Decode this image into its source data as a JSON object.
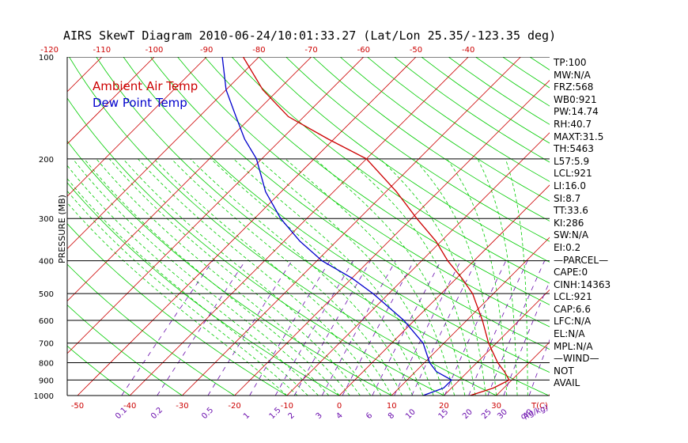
{
  "title": "AIRS SkewT Diagram 2010-06-24/10:01:33.27 (Lat/Lon 25.35/-123.35 deg)",
  "legend": {
    "ambient": "Ambient Air Temp",
    "dewpoint": "Dew Point Temp",
    "ambient_color": "#cc0000",
    "dewpoint_color": "#0000cc"
  },
  "indices": [
    "TP:100",
    "MW:N/A",
    "FRZ:568",
    "WB0:921",
    "PW:14.74",
    "RH:40.7",
    "MAXT:31.5",
    "TH:5463",
    "L57:5.9",
    "LCL:921",
    "LI:16.0",
    "SI:8.7",
    "TT:33.6",
    "KI:286",
    "SW:N/A",
    "EI:0.2",
    "—PARCEL—",
    "CAPE:0",
    "CINH:14363",
    "LCL:921",
    "CAP:6.6",
    "LFC:N/A",
    "EL:N/A",
    "MPL:N/A",
    "—WIND—",
    "NOT",
    "AVAIL"
  ],
  "chart_data": {
    "type": "line",
    "ylabel": "PRESSURE (MB)",
    "ylim": [
      1000,
      100
    ],
    "yscale": "log",
    "y_ticks": [
      "100",
      "200",
      "300",
      "400",
      "500",
      "600",
      "700",
      "800",
      "900",
      "1000"
    ],
    "x_ticks_bottom": [
      "-50",
      "-40",
      "-30",
      "-20",
      "-10",
      "0",
      "10",
      "20",
      "30"
    ],
    "x_ticks_top": [
      "-120",
      "-110",
      "-100",
      "-90",
      "-80",
      "-70",
      "-60",
      "-50",
      "-40"
    ],
    "x_unit_label": "T(C)",
    "mixing_ratio_labels": [
      "0.1",
      "0.2",
      "0.5",
      "1",
      "1.5",
      "2",
      "3",
      "4",
      "6",
      "8",
      "10",
      "15",
      "20",
      "25",
      "30",
      "40"
    ],
    "mixing_ratio_unit": "q(g/kg)",
    "series": [
      {
        "name": "Ambient Air Temp",
        "color": "#cc0000",
        "points": [
          [
            1000,
            25
          ],
          [
            950,
            28
          ],
          [
            900,
            29.5
          ],
          [
            850,
            27
          ],
          [
            800,
            24
          ],
          [
            700,
            18.5
          ],
          [
            600,
            13
          ],
          [
            500,
            6
          ],
          [
            450,
            1
          ],
          [
            400,
            -5
          ],
          [
            350,
            -11
          ],
          [
            300,
            -19
          ],
          [
            250,
            -28
          ],
          [
            200,
            -40
          ],
          [
            175,
            -51
          ],
          [
            150,
            -63
          ],
          [
            125,
            -73
          ],
          [
            100,
            -83
          ]
        ]
      },
      {
        "name": "Dew Point Temp",
        "color": "#0000cc",
        "points": [
          [
            1000,
            16
          ],
          [
            950,
            18.5
          ],
          [
            900,
            18.5
          ],
          [
            850,
            14
          ],
          [
            800,
            11
          ],
          [
            700,
            6
          ],
          [
            600,
            -2
          ],
          [
            500,
            -13
          ],
          [
            450,
            -20
          ],
          [
            400,
            -29
          ],
          [
            350,
            -37
          ],
          [
            300,
            -45
          ],
          [
            250,
            -53
          ],
          [
            200,
            -61
          ],
          [
            175,
            -67
          ],
          [
            150,
            -73
          ],
          [
            125,
            -80
          ],
          [
            100,
            -87
          ]
        ]
      }
    ]
  }
}
